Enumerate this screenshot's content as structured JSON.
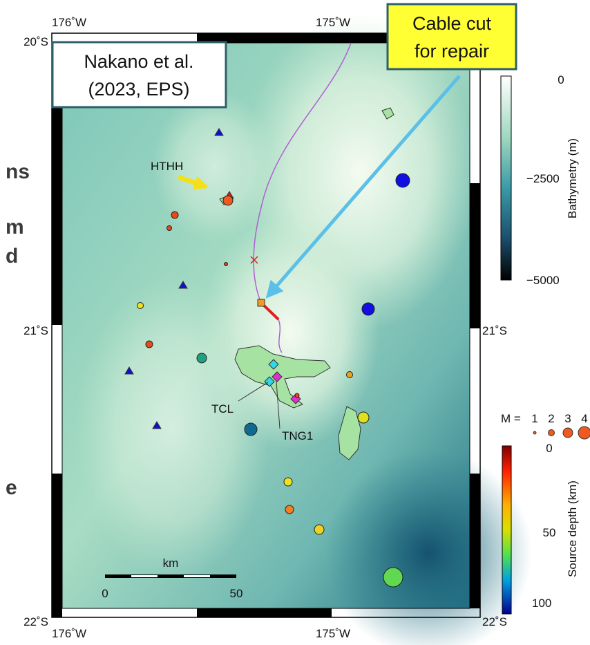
{
  "left_text_fragments": [
    "ns",
    "m",
    "d",
    "e"
  ],
  "map": {
    "longitude_labels": [
      "176˚W",
      "175˚W"
    ],
    "latitude_labels": [
      "20˚S",
      "21˚S",
      "22˚S"
    ],
    "place_labels": [
      "HTHH",
      "TCL",
      "TNG1"
    ],
    "scale_bar": {
      "unit": "km",
      "labels": [
        "0",
        "50"
      ]
    }
  },
  "annotations": {
    "citation": [
      "Nakano et al.",
      "(2023, EPS)"
    ],
    "callout": [
      "Cable cut",
      "for repair"
    ]
  },
  "bathymetry_colorbar": {
    "title": "Bathymetry (m)",
    "tick_labels": [
      "0",
      "−2500",
      "−5000"
    ]
  },
  "magnitude_legend": {
    "label": "M =",
    "values": [
      "1",
      "2",
      "3",
      "4"
    ]
  },
  "depth_colorbar": {
    "title": "Source depth (km)",
    "tick_labels": [
      "0",
      "50",
      "100"
    ]
  }
}
